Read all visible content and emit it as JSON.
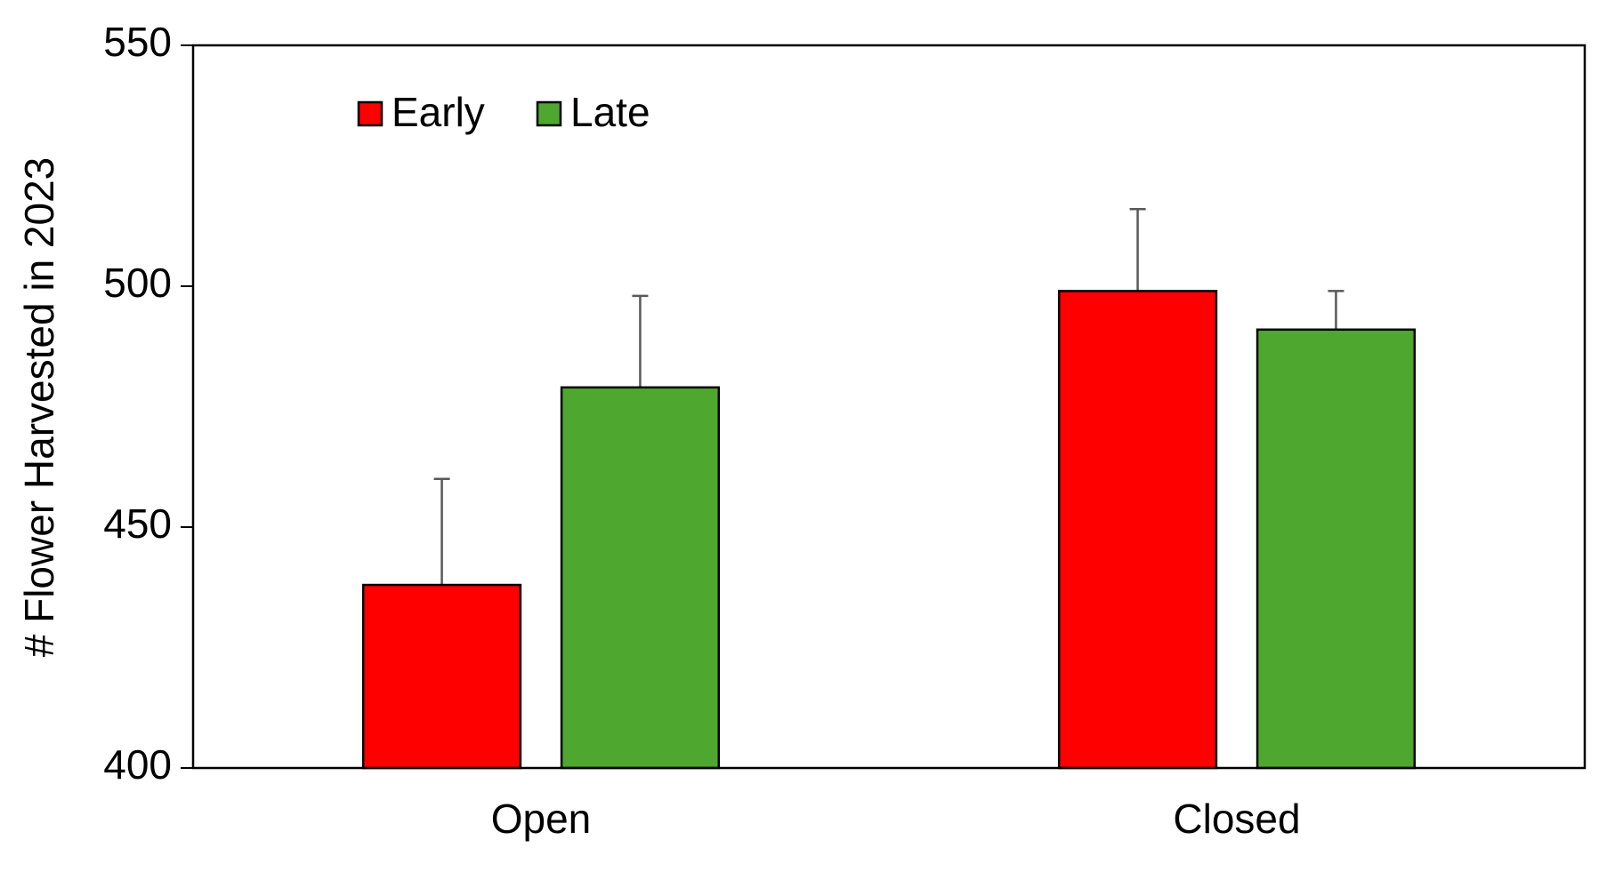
{
  "chart_data": {
    "type": "bar",
    "y_label": "# Flower Harvested in 2023",
    "categories": [
      "Open",
      "Closed"
    ],
    "series": [
      {
        "name": "Early",
        "color": "#ff0000",
        "values": [
          438,
          499
        ],
        "errors": [
          22,
          17
        ]
      },
      {
        "name": "Late",
        "color": "#4ea72e",
        "values": [
          479,
          491
        ],
        "errors": [
          19,
          8
        ]
      }
    ],
    "ylim": [
      400,
      550
    ],
    "yticks": [
      400,
      450,
      500,
      550
    ],
    "grid": false,
    "legend": "top-left"
  }
}
